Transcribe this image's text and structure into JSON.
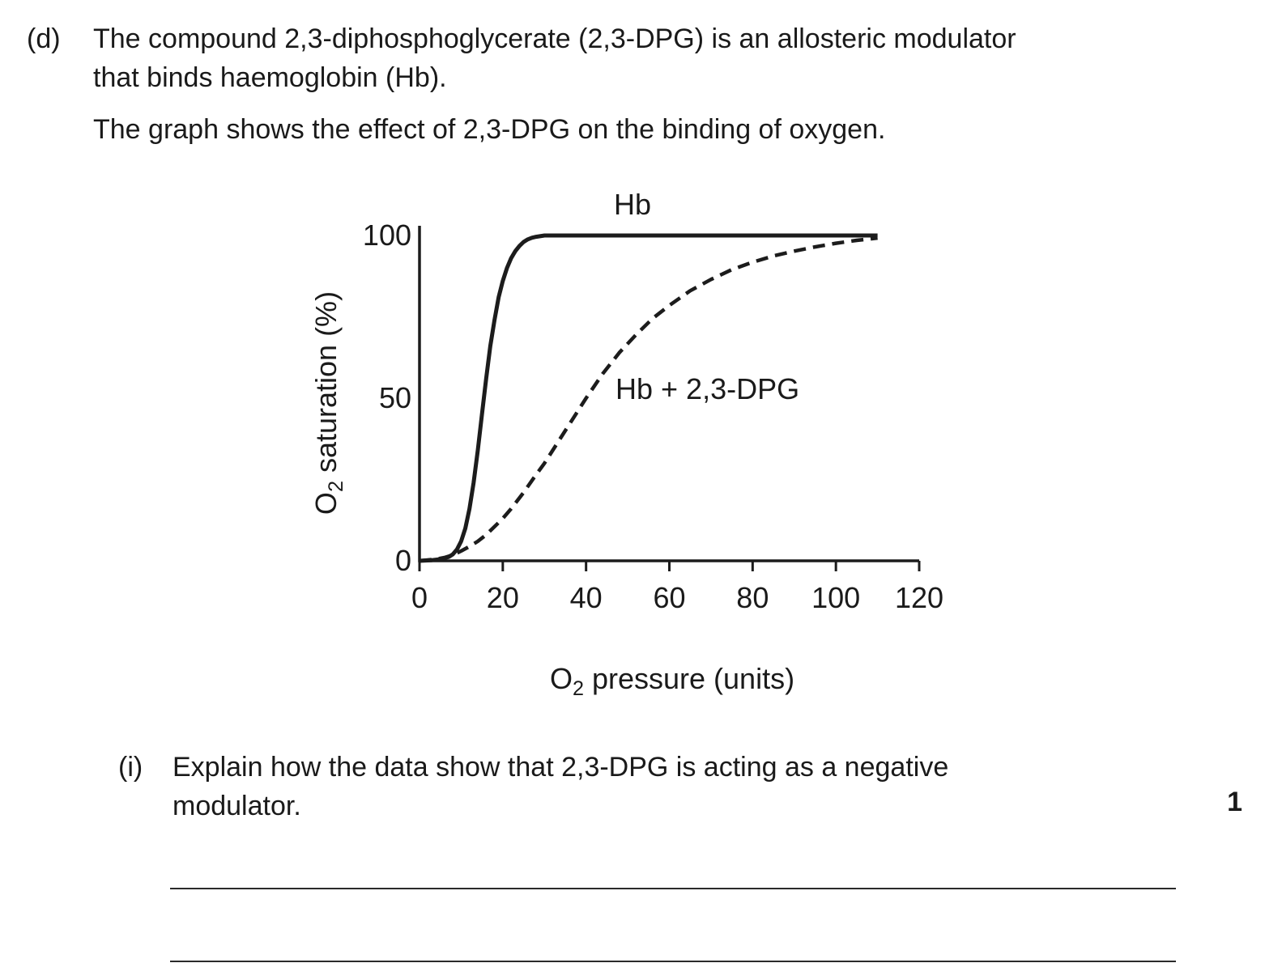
{
  "question": {
    "part_label": "(d)",
    "intro_lines": [
      "The compound 2,3-diphosphoglycerate (2,3-DPG) is an allosteric modulator",
      "that binds haemoglobin (Hb)."
    ],
    "graph_caption": "The graph shows the effect of 2,3-DPG on the binding of oxygen.",
    "subpart": {
      "label": "(i)",
      "text_lines": [
        "Explain how the data show that 2,3-DPG is acting as a negative",
        "modulator."
      ],
      "marks": "1"
    }
  },
  "chart_data": {
    "type": "line",
    "title": "",
    "xlabel": {
      "pre": "O",
      "sub": "2",
      "rest": " pressure (units)"
    },
    "ylabel": {
      "pre": "O",
      "sub": "2",
      "rest": " saturation (%)"
    },
    "xlim": [
      0,
      120
    ],
    "ylim": [
      0,
      100
    ],
    "xticks": [
      0,
      20,
      40,
      60,
      80,
      100,
      120
    ],
    "yticks": [
      0,
      50,
      100
    ],
    "grid": false,
    "line_color": "#1c1c1c",
    "series": [
      {
        "name": "Hb",
        "line_style": "solid",
        "x": [
          0,
          3,
          5,
          7,
          8,
          9,
          10,
          11,
          12,
          13,
          14,
          15,
          16,
          17,
          18,
          19,
          20,
          21,
          22,
          23,
          24,
          25,
          26,
          27,
          28,
          30,
          35,
          40,
          50,
          60,
          70,
          80,
          90,
          100,
          105,
          110
        ],
        "y": [
          0,
          0.2,
          0.5,
          1.2,
          2,
          3.5,
          6,
          10,
          16,
          24,
          34,
          45,
          56,
          66,
          74,
          81,
          86,
          90,
          93,
          95.2,
          96.8,
          98,
          98.8,
          99.3,
          99.6,
          100,
          100,
          100,
          100,
          100,
          100,
          100,
          100,
          100,
          100,
          100
        ]
      },
      {
        "name": "Hb + 2,3-DPG",
        "line_style": "dashed",
        "x": [
          0,
          4,
          6,
          8,
          10,
          12,
          14,
          16,
          18,
          20,
          22,
          25,
          28,
          30,
          33,
          36,
          40,
          44,
          48,
          52,
          56,
          60,
          65,
          70,
          75,
          80,
          85,
          90,
          95,
          100,
          105,
          110
        ],
        "y": [
          0,
          0.5,
          1,
          1.8,
          3,
          4.4,
          6,
          8,
          10.5,
          13,
          16,
          21,
          26.5,
          30,
          36,
          42,
          50,
          57.5,
          64,
          69.5,
          74.5,
          78.5,
          83,
          86.5,
          89.5,
          91.8,
          93.7,
          95.2,
          96.5,
          97.6,
          98.5,
          99.2
        ]
      }
    ]
  }
}
